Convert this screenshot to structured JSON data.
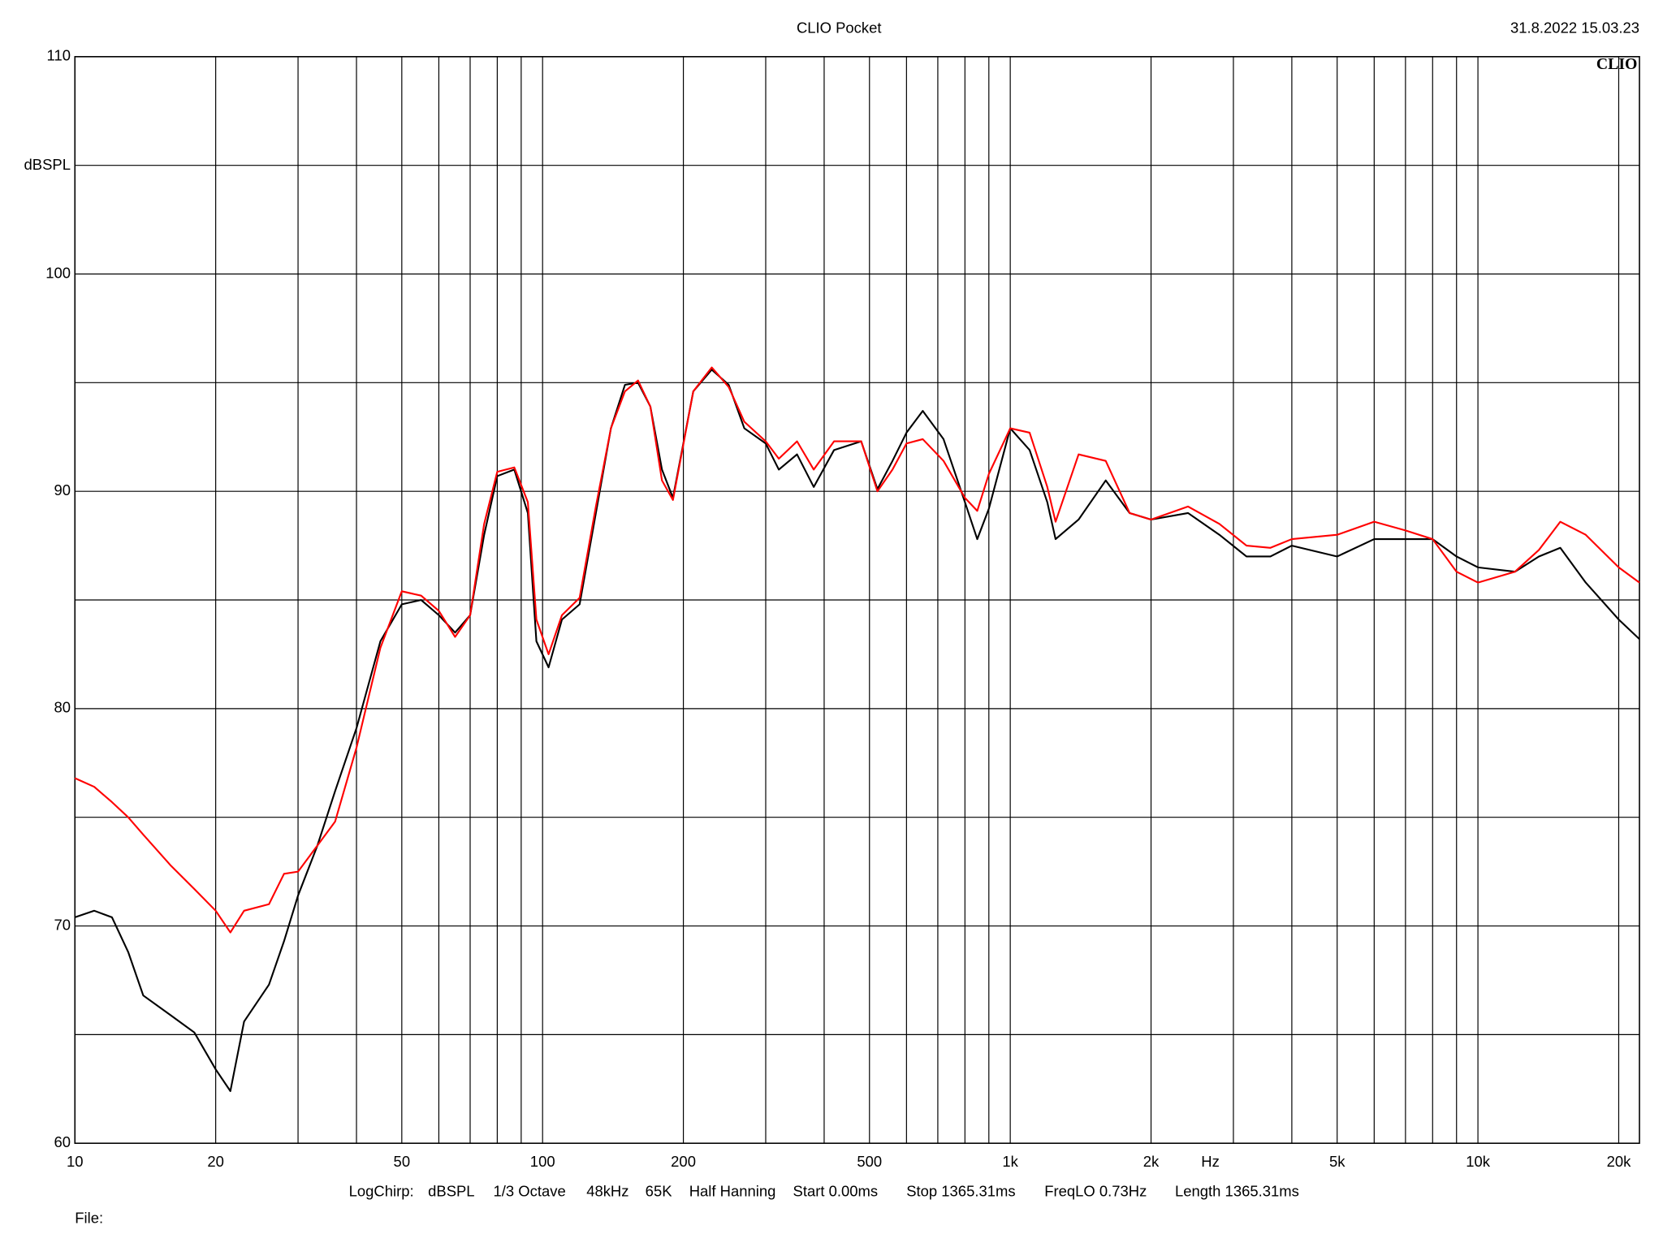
{
  "chart_data": {
    "type": "line",
    "title": "CLIO Pocket",
    "timestamp": "31.8.2022 15.03.23",
    "logo": "CLIO",
    "y_label": "dBSPL",
    "x_label": "Hz",
    "settings": [
      "LogChirp:",
      "dBSPL",
      "1/3 Octave",
      "48kHz",
      "65K",
      "Half Hanning",
      "Start 0.00ms",
      "Stop 1365.31ms",
      "FreqLO 0.73Hz",
      "Length 1365.31ms"
    ],
    "file_label": "File:",
    "x_log": true,
    "grid": true,
    "xlim": [
      10,
      22150
    ],
    "ylim": [
      60,
      110
    ],
    "xticks": [
      10,
      20,
      50,
      100,
      200,
      500,
      {
        "value": 1000,
        "label": "1k"
      },
      {
        "value": 2000,
        "label": "2k"
      },
      {
        "value": 5000,
        "label": "5k"
      },
      {
        "value": 10000,
        "label": "10k"
      },
      {
        "value": 20000,
        "label": "20k"
      }
    ],
    "xgrid_minor": [
      30,
      40,
      60,
      70,
      80,
      90,
      300,
      400,
      600,
      700,
      800,
      900,
      3000,
      4000,
      6000,
      7000,
      8000,
      9000
    ],
    "yticks": [
      60,
      70,
      80,
      90,
      100,
      110
    ],
    "ygrid_minor": [
      65,
      75,
      85,
      95,
      105
    ],
    "x": [
      10,
      11,
      12,
      13,
      14,
      16,
      18,
      20,
      21.5,
      23,
      26,
      28,
      30,
      33,
      36,
      40,
      45,
      50,
      55,
      60,
      65,
      70,
      75,
      80,
      87,
      93,
      97,
      103,
      110,
      120,
      130,
      140,
      150,
      160,
      170,
      180,
      190,
      210,
      230,
      250,
      270,
      300,
      320,
      350,
      380,
      420,
      480,
      520,
      560,
      600,
      650,
      720,
      800,
      850,
      900,
      1000,
      1100,
      1200,
      1250,
      1400,
      1600,
      1800,
      2000,
      2400,
      2800,
      3200,
      3600,
      4000,
      5000,
      6000,
      7000,
      8000,
      9000,
      10000,
      12000,
      13500,
      15000,
      17000,
      20000,
      22150
    ],
    "series": [
      {
        "color": "#000000",
        "values": [
          70.4,
          70.7,
          70.4,
          68.8,
          66.8,
          65.9,
          65.1,
          63.4,
          62.4,
          65.6,
          67.3,
          69.3,
          71.4,
          73.7,
          76.2,
          79.1,
          83.1,
          84.8,
          85.0,
          84.3,
          83.5,
          84.3,
          88.0,
          90.7,
          91.0,
          89.0,
          83.1,
          81.9,
          84.1,
          84.8,
          89.0,
          92.9,
          94.9,
          95.0,
          93.9,
          91.0,
          89.7,
          94.6,
          95.6,
          94.9,
          92.9,
          92.2,
          91.0,
          91.7,
          90.2,
          91.9,
          92.3,
          90.1,
          91.4,
          92.7,
          93.7,
          92.4,
          89.5,
          87.8,
          89.2,
          92.9,
          91.9,
          89.5,
          87.8,
          88.7,
          90.5,
          89.0,
          88.7,
          89.0,
          88.0,
          87.0,
          87.0,
          87.5,
          87.0,
          87.8,
          87.8,
          87.8,
          87.0,
          86.5,
          86.3,
          87.0,
          87.4,
          85.8,
          84.1,
          83.2
        ]
      },
      {
        "color": "#ff0000",
        "values": [
          76.8,
          76.4,
          75.7,
          75.0,
          74.2,
          72.8,
          71.7,
          70.7,
          69.7,
          70.7,
          71.0,
          72.4,
          72.5,
          73.7,
          74.8,
          78.2,
          82.8,
          85.4,
          85.2,
          84.5,
          83.3,
          84.3,
          88.5,
          90.9,
          91.1,
          89.5,
          84.1,
          82.5,
          84.3,
          85.1,
          89.3,
          92.9,
          94.6,
          95.1,
          93.9,
          90.5,
          89.6,
          94.6,
          95.7,
          94.8,
          93.2,
          92.3,
          91.5,
          92.3,
          91.0,
          92.3,
          92.3,
          90.0,
          91.0,
          92.2,
          92.4,
          91.4,
          89.7,
          89.1,
          90.8,
          92.9,
          92.7,
          90.2,
          88.6,
          91.7,
          91.4,
          89.0,
          88.7,
          89.3,
          88.5,
          87.5,
          87.4,
          87.8,
          88.0,
          88.6,
          88.2,
          87.8,
          86.3,
          85.8,
          86.3,
          87.3,
          88.6,
          88.0,
          86.5,
          85.8
        ]
      }
    ]
  }
}
